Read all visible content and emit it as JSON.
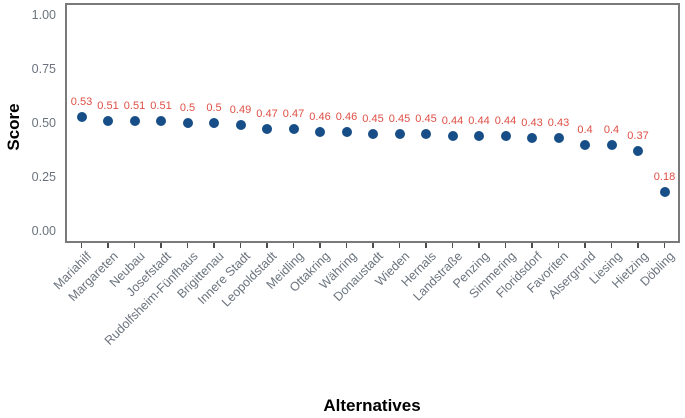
{
  "chart_data": {
    "type": "scatter",
    "title": "",
    "xlabel": "Alternatives",
    "ylabel": "Score",
    "ylim": [
      0,
      1
    ],
    "yticks": [
      0,
      0.25,
      0.5,
      0.75,
      1
    ],
    "ytick_labels": [
      "0.00",
      "0.25",
      "0.50",
      "0.75",
      "1.00"
    ],
    "grid": false,
    "legend": "none",
    "categories": [
      "Mariahilf",
      "Margareten",
      "Neubau",
      "Josefstadt",
      "Rudolfsheim-Fünfhaus",
      "Brigittenau",
      "Innere Stadt",
      "Leopoldstadt",
      "Meidling",
      "Ottakring",
      "Währing",
      "Donaustadt",
      "Wieden",
      "Hernals",
      "Landstraße",
      "Penzing",
      "Simmering",
      "Floridsdorf",
      "Favoriten",
      "Alsergrund",
      "Liesing",
      "Hietzing",
      "Döbling"
    ],
    "values": [
      0.53,
      0.51,
      0.51,
      0.51,
      0.5,
      0.5,
      0.49,
      0.47,
      0.47,
      0.46,
      0.46,
      0.45,
      0.45,
      0.45,
      0.44,
      0.44,
      0.44,
      0.43,
      0.43,
      0.4,
      0.4,
      0.37,
      0.18
    ],
    "point_labels": [
      "0.53",
      "0.51",
      "0.51",
      "0.51",
      "0.5",
      "0.5",
      "0.49",
      "0.47",
      "0.47",
      "0.46",
      "0.46",
      "0.45",
      "0.45",
      "0.45",
      "0.44",
      "0.44",
      "0.44",
      "0.43",
      "0.43",
      "0.4",
      "0.4",
      "0.37",
      "0.18"
    ],
    "colors": {
      "point": "#174E87",
      "point_label": "#DE4F45",
      "axis_text": "#6A737D",
      "axis_title": "#000000",
      "panel_border": "#7A7A7A",
      "tick": "#4D4D4D",
      "background": "#FFFFFF"
    }
  }
}
